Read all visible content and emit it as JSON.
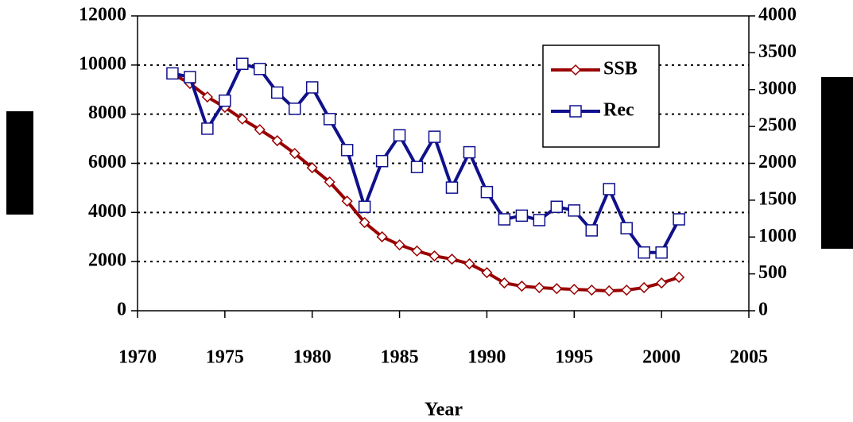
{
  "chart_data": {
    "type": "line",
    "x_label": "Year",
    "x": [
      1972,
      1973,
      1974,
      1975,
      1976,
      1977,
      1978,
      1979,
      1980,
      1981,
      1982,
      1983,
      1984,
      1985,
      1986,
      1987,
      1988,
      1989,
      1990,
      1991,
      1992,
      1993,
      1994,
      1995,
      1996,
      1997,
      1998,
      1999,
      2000,
      2001
    ],
    "series": [
      {
        "name": "SSB",
        "color": "#990000",
        "marker": "diamond",
        "values": [
          9640,
          9250,
          8700,
          8280,
          7800,
          7370,
          6920,
          6400,
          5820,
          5240,
          4460,
          3590,
          3010,
          2680,
          2430,
          2230,
          2100,
          1910,
          1550,
          1130,
          1000,
          940,
          900,
          870,
          840,
          810,
          840,
          940,
          1130,
          1360
        ]
      },
      {
        "name": "Rec",
        "color": "#10108c",
        "marker": "square",
        "axis": "y2",
        "values": [
          3220,
          3170,
          2470,
          2850,
          3350,
          3280,
          2960,
          2740,
          3030,
          2600,
          2180,
          1410,
          2030,
          2380,
          1950,
          2360,
          1670,
          2150,
          1610,
          1240,
          1290,
          1230,
          1410,
          1360,
          1090,
          1650,
          1120,
          790,
          790,
          1240
        ]
      }
    ],
    "xlim": [
      1970,
      2005
    ],
    "xticks": [
      1970,
      1975,
      1980,
      1985,
      1990,
      1995,
      2000,
      2005
    ],
    "ylim": [
      0,
      12000
    ],
    "yticks": [
      0,
      2000,
      4000,
      6000,
      8000,
      10000,
      12000
    ],
    "y2lim": [
      0,
      4000
    ],
    "y2ticks": [
      0,
      500,
      1000,
      1500,
      2000,
      2500,
      3000,
      3500,
      4000
    ],
    "grid": true,
    "legend": "upper right"
  }
}
